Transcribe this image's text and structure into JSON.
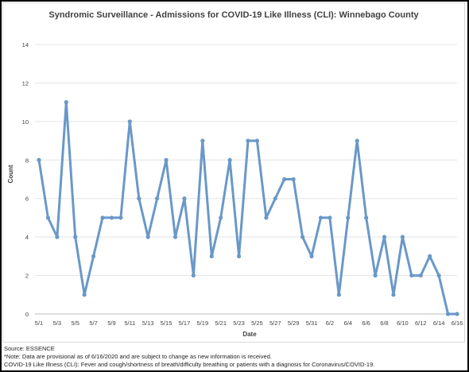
{
  "chart_data": {
    "type": "line",
    "title": "Syndromic Surveillance - Admissions for COVID-19 Like Illness (CLI): Winnebago County",
    "xlabel": "Date",
    "ylabel": "Count",
    "ylim": [
      0,
      14
    ],
    "yticks": [
      0,
      2,
      4,
      6,
      8,
      10,
      12,
      14
    ],
    "grid": true,
    "legend": "none",
    "line_color": "#6a98c8",
    "x_tick_labels": [
      "5/1",
      "5/3",
      "5/5",
      "5/7",
      "5/9",
      "5/11",
      "5/13",
      "5/15",
      "5/17",
      "5/19",
      "5/21",
      "5/23",
      "5/25",
      "5/27",
      "5/29",
      "5/31",
      "6/2",
      "6/4",
      "6/6",
      "6/8",
      "6/10",
      "6/12",
      "6/14",
      "6/16"
    ],
    "series": [
      {
        "values": [
          8,
          5,
          4,
          11,
          4,
          1,
          3,
          5,
          5,
          5,
          10,
          6,
          4,
          6,
          8,
          4,
          6,
          2,
          9,
          3,
          5,
          8,
          3,
          9,
          9,
          5,
          6,
          7,
          7,
          4,
          3,
          5,
          5,
          1,
          5,
          9,
          5,
          2,
          4,
          1,
          4,
          2,
          2,
          3,
          2,
          0,
          0
        ]
      }
    ]
  },
  "notes": {
    "source": "Source: ESSENCE",
    "note": "*Note: Data are provisional as of 6/16/2020 and are subject to change as new information is received.",
    "definition": "COVID-19 Like Illness (CLI): Fever and cough/shortness of breath/difficulty breathing or patients with a diagnosis for Coronavirus/COVID-19."
  }
}
